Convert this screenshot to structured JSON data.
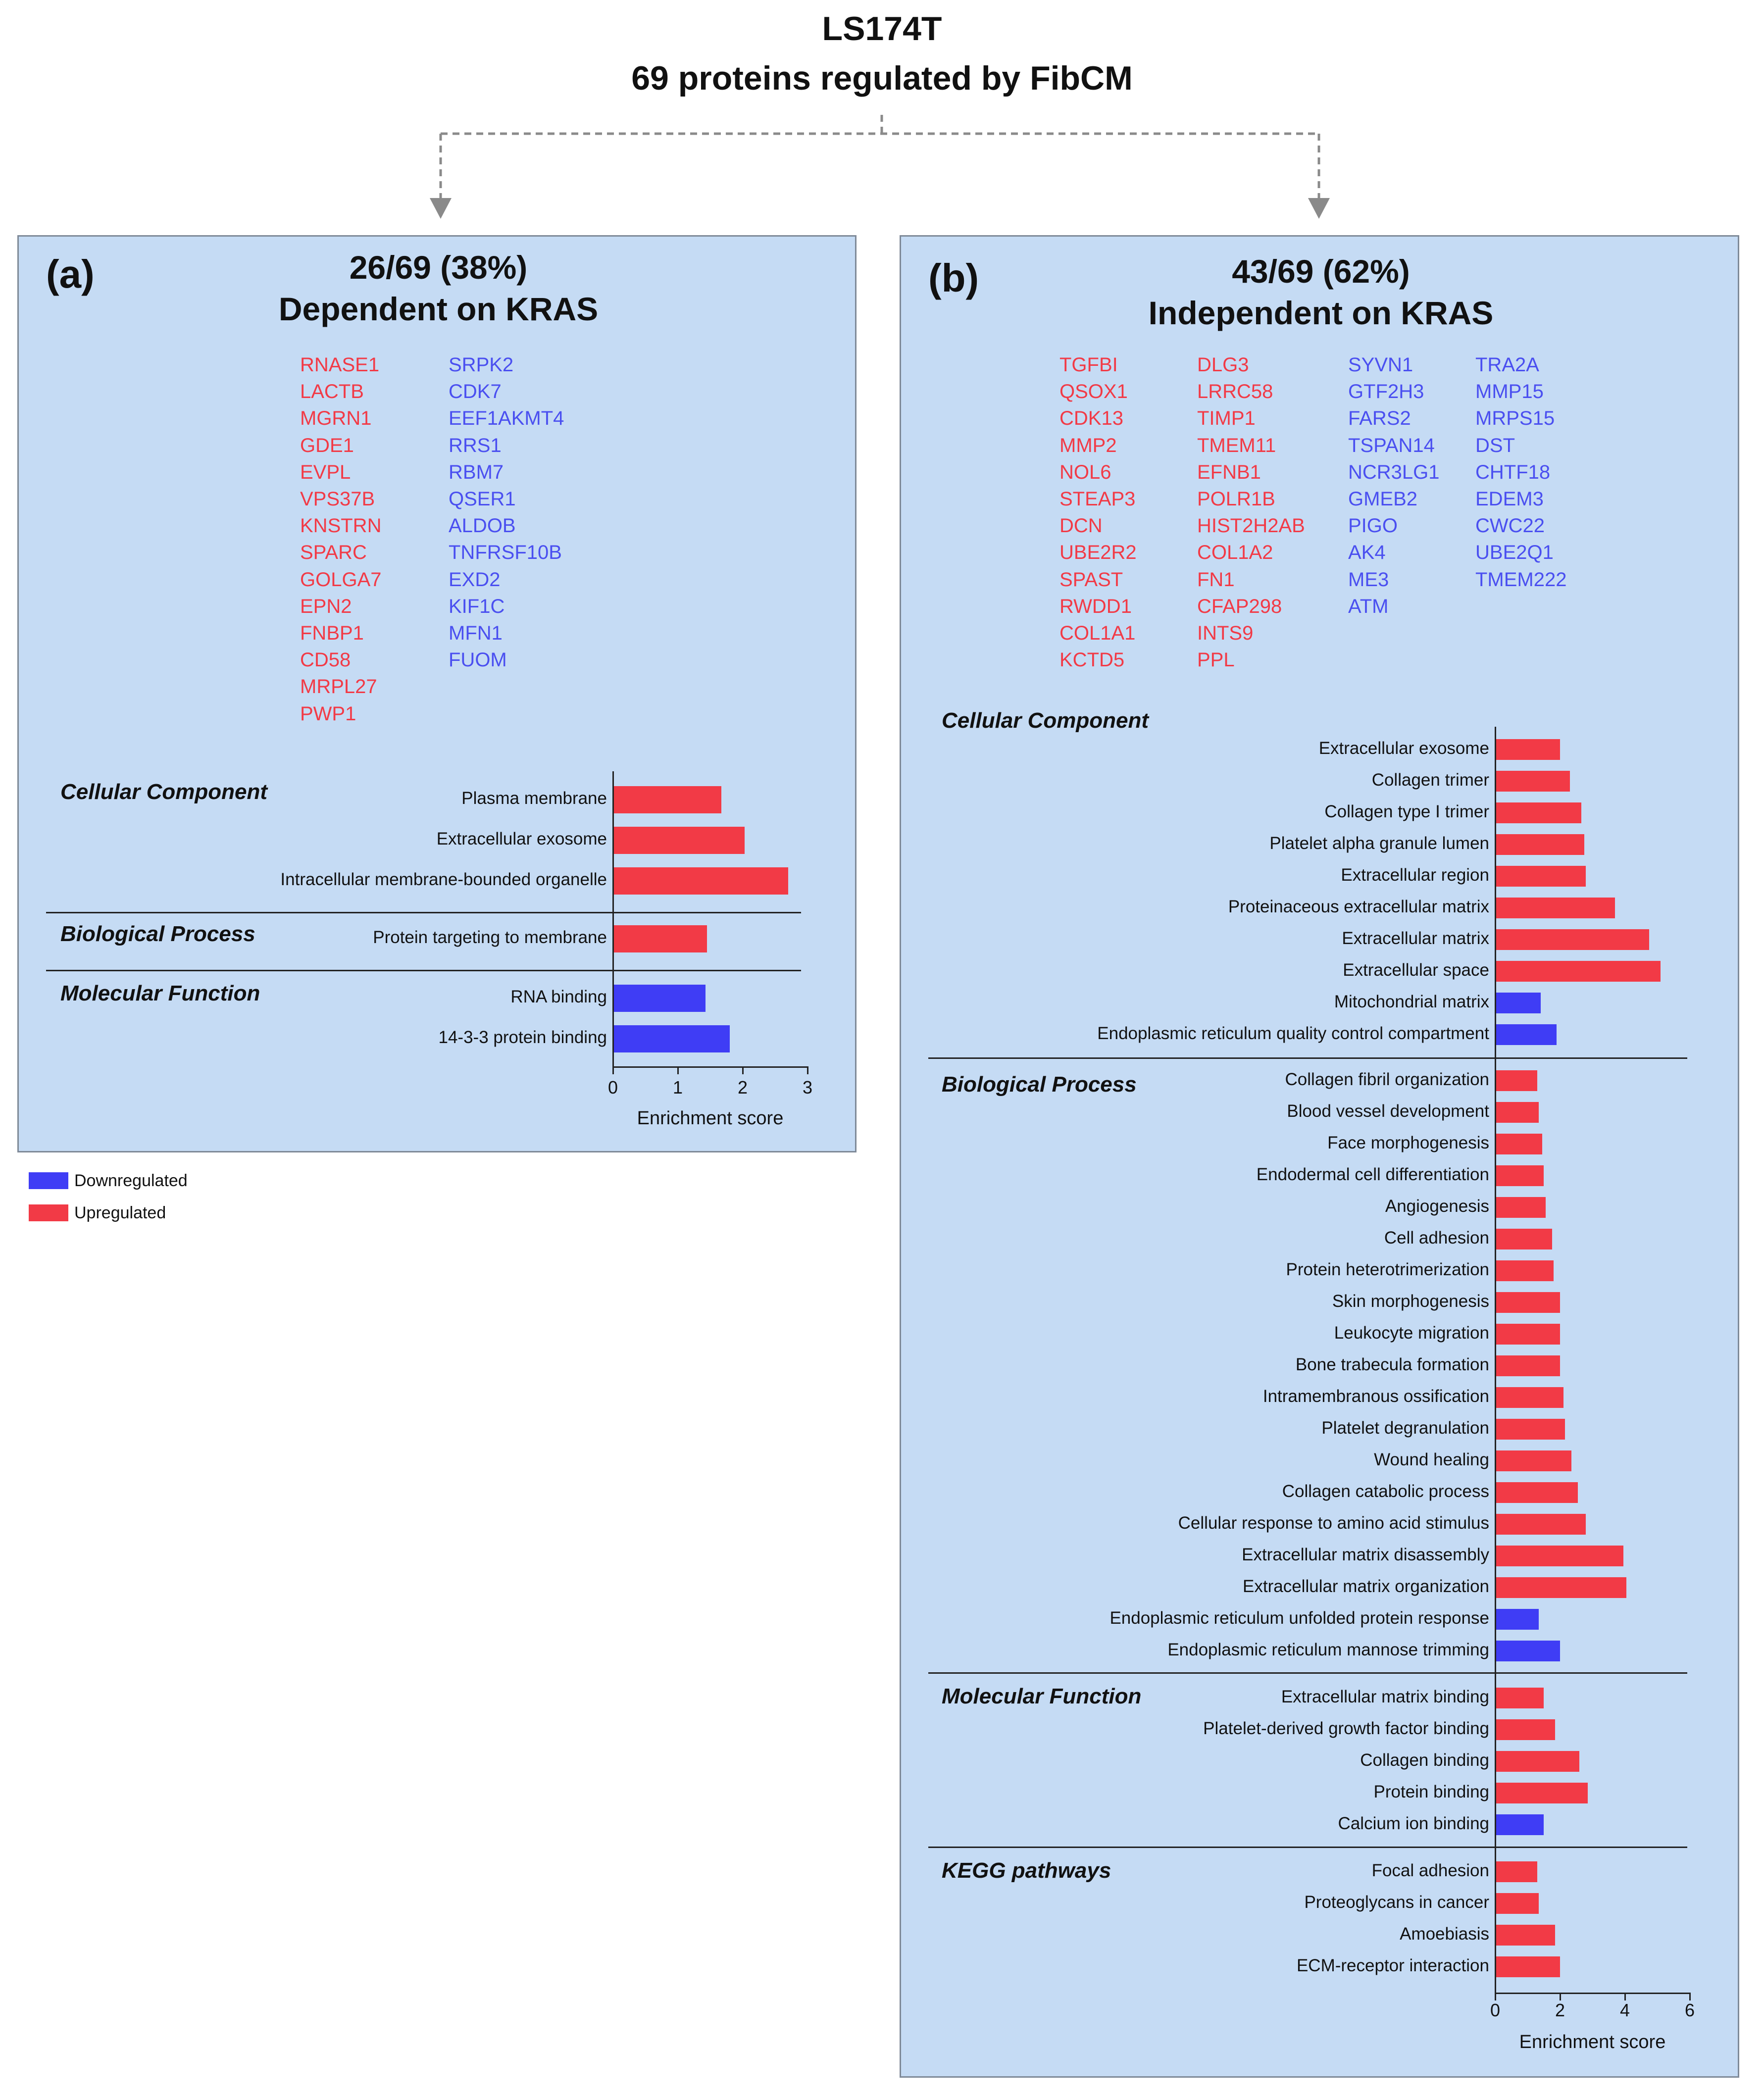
{
  "title_line1": "LS174T",
  "title_line2": "69 proteins regulated by FibCM",
  "colors": {
    "up": "#f23a46",
    "down": "#3f3df5",
    "panel_bg": "#c5dbf4",
    "connector": "#8a8a8a"
  },
  "panel_a": {
    "letter": "(a)",
    "heading_line1": "26/69 (38%)",
    "heading_line2": "Dependent on KRAS",
    "genes_up": [
      "RNASE1",
      "LACTB",
      "MGRN1",
      "GDE1",
      "EVPL",
      "VPS37B",
      "KNSTRN",
      "SPARC",
      "GOLGA7",
      "EPN2",
      "FNBP1",
      "CD58",
      "MRPL27",
      "PWP1"
    ],
    "genes_down": [
      "SRPK2",
      "CDK7",
      "EEF1AKMT4",
      "RRS1",
      "RBM7",
      "QSER1",
      "ALDOB",
      "TNFRSF10B",
      "EXD2",
      "KIF1C",
      "MFN1",
      "FUOM"
    ]
  },
  "panel_b": {
    "letter": "(b)",
    "heading_line1": "43/69 (62%)",
    "heading_line2": "Independent on KRAS",
    "genes_up_col1": [
      "TGFBI",
      "QSOX1",
      "CDK13",
      "MMP2",
      "NOL6",
      "STEAP3",
      "DCN",
      "UBE2R2",
      "SPAST",
      "RWDD1",
      "COL1A1",
      "KCTD5"
    ],
    "genes_up_col2": [
      "DLG3",
      "LRRC58",
      "TIMP1",
      "TMEM11",
      "EFNB1",
      "POLR1B",
      "HIST2H2AB",
      "COL1A2",
      "FN1",
      "CFAP298",
      "INTS9",
      "PPL"
    ],
    "genes_down_col1": [
      "SYVN1",
      "GTF2H3",
      "FARS2",
      "TSPAN14",
      "NCR3LG1",
      "GMEB2",
      "PIGO",
      "AK4",
      "ME3",
      "ATM"
    ],
    "genes_down_col2": [
      "TRA2A",
      "MMP15",
      "MRPS15",
      "DST",
      "CHTF18",
      "EDEM3",
      "CWC22",
      "UBE2Q1",
      "TMEM222"
    ]
  },
  "legend": {
    "down_label": "Downregulated",
    "up_label": "Upregulated"
  },
  "chart_data": [
    {
      "type": "bar",
      "orientation": "horizontal",
      "xlabel": "Enrichment score",
      "xlim": [
        0,
        3
      ],
      "xticks": [
        0,
        1,
        2,
        3
      ],
      "grid": false,
      "groups": [
        {
          "category": "Cellular Component",
          "bars": [
            {
              "label": "Plasma membrane",
              "value": 1.67,
              "direction": "up"
            },
            {
              "label": "Extracellular exosome",
              "value": 2.03,
              "direction": "up"
            },
            {
              "label": "Intracellular membrane-bounded organelle",
              "value": 2.7,
              "direction": "up"
            }
          ]
        },
        {
          "category": "Biological Process",
          "bars": [
            {
              "label": "Protein targeting to membrane",
              "value": 1.45,
              "direction": "up"
            }
          ]
        },
        {
          "category": "Molecular Function",
          "bars": [
            {
              "label": "RNA binding",
              "value": 1.43,
              "direction": "down"
            },
            {
              "label": "14-3-3 protein binding",
              "value": 1.8,
              "direction": "down"
            }
          ]
        }
      ]
    },
    {
      "type": "bar",
      "orientation": "horizontal",
      "xlabel": "Enrichment score",
      "xlim": [
        0,
        6
      ],
      "xticks": [
        0,
        2,
        4,
        6
      ],
      "grid": false,
      "groups": [
        {
          "category": "Cellular Component",
          "bars": [
            {
              "label": "Extracellular exosome",
              "value": 2.0,
              "direction": "up"
            },
            {
              "label": "Collagen trimer",
              "value": 2.3,
              "direction": "up"
            },
            {
              "label": "Collagen type I trimer",
              "value": 2.65,
              "direction": "up"
            },
            {
              "label": "Platelet alpha granule lumen",
              "value": 2.75,
              "direction": "up"
            },
            {
              "label": "Extracellular region",
              "value": 2.8,
              "direction": "up"
            },
            {
              "label": "Proteinaceous extracellular matrix",
              "value": 3.7,
              "direction": "up"
            },
            {
              "label": "Extracellular matrix",
              "value": 4.75,
              "direction": "up"
            },
            {
              "label": "Extracellular space",
              "value": 5.1,
              "direction": "up"
            },
            {
              "label": "Mitochondrial matrix",
              "value": 1.4,
              "direction": "down"
            },
            {
              "label": "Endoplasmic reticulum quality control compartment",
              "value": 1.9,
              "direction": "down"
            }
          ]
        },
        {
          "category": "Biological Process",
          "bars": [
            {
              "label": "Collagen fibril organization",
              "value": 1.3,
              "direction": "up"
            },
            {
              "label": "Blood vessel development",
              "value": 1.35,
              "direction": "up"
            },
            {
              "label": "Face morphogenesis",
              "value": 1.45,
              "direction": "up"
            },
            {
              "label": "Endodermal cell differentiation",
              "value": 1.5,
              "direction": "up"
            },
            {
              "label": "Angiogenesis",
              "value": 1.55,
              "direction": "up"
            },
            {
              "label": "Cell adhesion",
              "value": 1.75,
              "direction": "up"
            },
            {
              "label": "Protein heterotrimerization",
              "value": 1.8,
              "direction": "up"
            },
            {
              "label": "Skin morphogenesis",
              "value": 2.0,
              "direction": "up"
            },
            {
              "label": "Leukocyte migration",
              "value": 2.0,
              "direction": "up"
            },
            {
              "label": "Bone trabecula formation",
              "value": 2.0,
              "direction": "up"
            },
            {
              "label": "Intramembranous ossification",
              "value": 2.1,
              "direction": "up"
            },
            {
              "label": "Platelet degranulation",
              "value": 2.15,
              "direction": "up"
            },
            {
              "label": "Wound healing",
              "value": 2.35,
              "direction": "up"
            },
            {
              "label": "Collagen catabolic process",
              "value": 2.55,
              "direction": "up"
            },
            {
              "label": "Cellular response to amino acid stimulus",
              "value": 2.8,
              "direction": "up"
            },
            {
              "label": "Extracellular matrix disassembly",
              "value": 3.95,
              "direction": "up"
            },
            {
              "label": "Extracellular matrix organization",
              "value": 4.05,
              "direction": "up"
            },
            {
              "label": "Endoplasmic reticulum unfolded protein response",
              "value": 1.35,
              "direction": "down"
            },
            {
              "label": "Endoplasmic reticulum mannose trimming",
              "value": 2.0,
              "direction": "down"
            }
          ]
        },
        {
          "category": "Molecular Function",
          "bars": [
            {
              "label": "Extracellular matrix binding",
              "value": 1.5,
              "direction": "up"
            },
            {
              "label": "Platelet-derived growth factor binding",
              "value": 1.85,
              "direction": "up"
            },
            {
              "label": "Collagen binding",
              "value": 2.6,
              "direction": "up"
            },
            {
              "label": "Protein binding",
              "value": 2.85,
              "direction": "up"
            },
            {
              "label": "Calcium ion binding",
              "value": 1.5,
              "direction": "down"
            }
          ]
        },
        {
          "category": "KEGG pathways",
          "bars": [
            {
              "label": "Focal adhesion",
              "value": 1.3,
              "direction": "up"
            },
            {
              "label": "Proteoglycans in cancer",
              "value": 1.35,
              "direction": "up"
            },
            {
              "label": "Amoebiasis",
              "value": 1.85,
              "direction": "up"
            },
            {
              "label": "ECM-receptor interaction",
              "value": 2.0,
              "direction": "up"
            }
          ]
        }
      ]
    }
  ]
}
